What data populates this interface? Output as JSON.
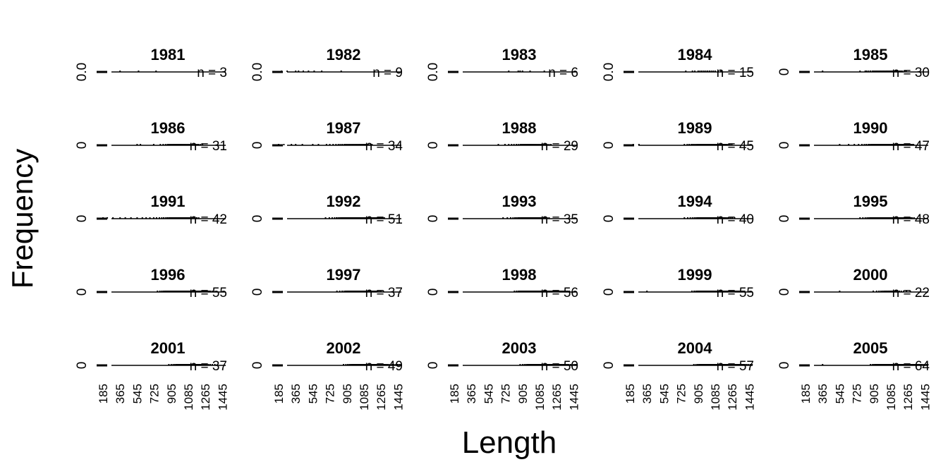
{
  "chart_data": {
    "type": "bar",
    "ylabel": "Frequency",
    "xlabel": "Length",
    "x_ticks": [
      "185",
      "365",
      "545",
      "725",
      "905",
      "1085",
      "1265",
      "1445"
    ],
    "xlim": [
      140,
      1480
    ],
    "panels": [
      {
        "title": "1981",
        "n_label": "n = 3",
        "y_label": "0.0",
        "lengths": [
          365,
          560,
          745
        ]
      },
      {
        "title": "1982",
        "n_label": "n = 9",
        "y_label": "0.0",
        "lengths": [
          215,
          275,
          365,
          395,
          445,
          500,
          560,
          640,
          845
        ]
      },
      {
        "title": "1983",
        "n_label": "n = 6",
        "y_label": "0.0",
        "lengths": [
          760,
          860,
          880,
          905,
          985,
          1135
        ]
      },
      {
        "title": "1984",
        "n_label": "n = 15",
        "y_label": "0.0",
        "lengths": [
          775,
          845,
          870,
          905,
          925,
          945,
          965,
          985,
          1005,
          1025,
          1045,
          1065,
          1085,
          1115,
          1145
        ]
      },
      {
        "title": "1985",
        "n_label": "n = 30",
        "y_label": "0",
        "lengths": [
          365,
          760,
          815,
          830,
          850,
          870,
          890,
          905,
          920,
          935,
          950,
          965,
          980,
          995,
          1010,
          1025,
          1040,
          1055,
          1070,
          1085,
          1100,
          1115,
          1130,
          1145,
          1160,
          1175,
          1190,
          1205,
          1225,
          1245
        ]
      },
      {
        "title": "1986",
        "n_label": "n = 31",
        "y_label": "0",
        "lengths": [
          545,
          580,
          720,
          790,
          820,
          845,
          865,
          880,
          895,
          910,
          925,
          940,
          955,
          970,
          985,
          1000,
          1015,
          1030,
          1045,
          1060,
          1075,
          1090,
          1105,
          1120,
          1135,
          1150,
          1165,
          1180,
          1195,
          1215,
          1235
        ]
      },
      {
        "title": "1987",
        "n_label": "n = 34",
        "y_label": "0",
        "lengths": [
          185,
          240,
          320,
          365,
          435,
          545,
          605,
          690,
          725,
          760,
          790,
          815,
          835,
          855,
          875,
          890,
          905,
          920,
          935,
          950,
          965,
          980,
          995,
          1010,
          1025,
          1040,
          1055,
          1070,
          1085,
          1100,
          1115,
          1130,
          1150,
          1170
        ]
      },
      {
        "title": "1988",
        "n_label": "n = 29",
        "y_label": "0",
        "lengths": [
          650,
          720,
          760,
          790,
          815,
          840,
          860,
          880,
          895,
          910,
          925,
          940,
          955,
          970,
          985,
          1000,
          1015,
          1030,
          1045,
          1060,
          1075,
          1090,
          1105,
          1120,
          1135,
          1150,
          1165,
          1185,
          1205
        ]
      },
      {
        "title": "1989",
        "n_label": "n = 45",
        "y_label": "0",
        "lengths": [
          220,
          280,
          760,
          790,
          810,
          830,
          845,
          860,
          875,
          890,
          900,
          910,
          920,
          930,
          940,
          950,
          960,
          970,
          980,
          990,
          1000,
          1010,
          1020,
          1030,
          1040,
          1050,
          1060,
          1070,
          1080,
          1090,
          1100,
          1110,
          1120,
          1130,
          1140,
          1150,
          1160,
          1170,
          1180,
          1190,
          1200,
          1210,
          1225,
          1240,
          1260
        ]
      },
      {
        "title": "1990",
        "n_label": "n = 47",
        "y_label": "0",
        "lengths": [
          545,
          640,
          700,
          745,
          780,
          805,
          825,
          845,
          860,
          875,
          888,
          900,
          912,
          924,
          936,
          948,
          960,
          972,
          984,
          996,
          1008,
          1020,
          1032,
          1044,
          1056,
          1068,
          1080,
          1092,
          1104,
          1116,
          1128,
          1140,
          1152,
          1164,
          1176,
          1188,
          1200,
          1212,
          1224,
          1236,
          1248,
          1260,
          1272,
          1284,
          1296,
          1310,
          1325
        ]
      },
      {
        "title": "1991",
        "n_label": "n = 42",
        "y_label": "0",
        "lengths": [
          185,
          230,
          290,
          365,
          420,
          480,
          545,
          600,
          640,
          680,
          720,
          750,
          780,
          805,
          825,
          845,
          862,
          878,
          892,
          905,
          918,
          930,
          942,
          954,
          966,
          978,
          990,
          1002,
          1014,
          1026,
          1038,
          1050,
          1062,
          1074,
          1086,
          1098,
          1110,
          1125,
          1140,
          1155,
          1175,
          1195
        ]
      },
      {
        "title": "1992",
        "n_label": "n = 51",
        "y_label": "0",
        "lengths": [
          680,
          720,
          750,
          775,
          795,
          812,
          828,
          842,
          855,
          867,
          878,
          888,
          898,
          908,
          918,
          928,
          938,
          948,
          958,
          968,
          978,
          988,
          998,
          1008,
          1018,
          1028,
          1038,
          1048,
          1058,
          1068,
          1078,
          1088,
          1098,
          1108,
          1118,
          1128,
          1138,
          1148,
          1158,
          1168,
          1178,
          1188,
          1198,
          1208,
          1218,
          1230,
          1242,
          1255,
          1270,
          1285,
          1300
        ]
      },
      {
        "title": "1993",
        "n_label": "n = 35",
        "y_label": "0",
        "lengths": [
          700,
          745,
          780,
          805,
          825,
          842,
          858,
          872,
          885,
          897,
          908,
          918,
          928,
          938,
          948,
          958,
          968,
          978,
          988,
          998,
          1008,
          1018,
          1028,
          1038,
          1048,
          1058,
          1068,
          1078,
          1090,
          1102,
          1115,
          1130,
          1145,
          1165,
          1185
        ]
      },
      {
        "title": "1994",
        "n_label": "n = 40",
        "y_label": "0",
        "lengths": [
          760,
          795,
          822,
          845,
          865,
          882,
          897,
          910,
          922,
          934,
          945,
          956,
          967,
          978,
          988,
          998,
          1008,
          1018,
          1028,
          1038,
          1048,
          1058,
          1068,
          1078,
          1088,
          1098,
          1108,
          1118,
          1128,
          1138,
          1148,
          1158,
          1170,
          1182,
          1195,
          1210,
          1225,
          1245,
          1265,
          1290
        ]
      },
      {
        "title": "1995",
        "n_label": "n = 48",
        "y_label": "0",
        "lengths": [
          760,
          790,
          815,
          835,
          852,
          867,
          880,
          892,
          903,
          913,
          923,
          933,
          943,
          953,
          963,
          973,
          983,
          993,
          1003,
          1013,
          1023,
          1033,
          1043,
          1053,
          1063,
          1073,
          1083,
          1093,
          1103,
          1113,
          1123,
          1133,
          1143,
          1153,
          1163,
          1173,
          1183,
          1193,
          1203,
          1213,
          1225,
          1237,
          1250,
          1265,
          1280,
          1295,
          1310,
          1330
        ]
      },
      {
        "title": "1996",
        "n_label": "n = 55",
        "y_label": "0",
        "lengths": [
          760,
          785,
          805,
          822,
          837,
          850,
          862,
          873,
          883,
          893,
          902,
          911,
          920,
          929,
          938,
          947,
          956,
          965,
          974,
          983,
          992,
          1001,
          1010,
          1019,
          1028,
          1037,
          1046,
          1055,
          1064,
          1073,
          1082,
          1091,
          1100,
          1109,
          1118,
          1127,
          1136,
          1145,
          1154,
          1163,
          1172,
          1181,
          1190,
          1199,
          1208,
          1218,
          1228,
          1238,
          1250,
          1262,
          1275,
          1290,
          1305,
          1320,
          1340
        ]
      },
      {
        "title": "1997",
        "n_label": "n = 37",
        "y_label": "0",
        "lengths": [
          800,
          830,
          855,
          875,
          892,
          907,
          920,
          932,
          943,
          954,
          965,
          976,
          987,
          998,
          1009,
          1020,
          1031,
          1042,
          1053,
          1064,
          1075,
          1086,
          1097,
          1108,
          1119,
          1130,
          1141,
          1152,
          1163,
          1174,
          1186,
          1198,
          1212,
          1227,
          1245,
          1265,
          1290
        ]
      },
      {
        "title": "1998",
        "n_label": "n = 56",
        "y_label": "0",
        "lengths": [
          820,
          842,
          860,
          875,
          888,
          900,
          911,
          921,
          931,
          940,
          949,
          958,
          967,
          976,
          985,
          994,
          1003,
          1012,
          1021,
          1030,
          1039,
          1048,
          1057,
          1066,
          1075,
          1084,
          1093,
          1102,
          1111,
          1120,
          1129,
          1138,
          1147,
          1156,
          1165,
          1174,
          1183,
          1192,
          1201,
          1210,
          1219,
          1228,
          1237,
          1246,
          1255,
          1265,
          1275,
          1285,
          1296,
          1308,
          1320,
          1333,
          1347,
          1362,
          1380,
          1400
        ]
      },
      {
        "title": "1999",
        "n_label": "n = 55",
        "y_label": "0",
        "lengths": [
          365,
          840,
          862,
          880,
          895,
          908,
          920,
          931,
          941,
          951,
          960,
          969,
          978,
          987,
          996,
          1005,
          1014,
          1023,
          1032,
          1041,
          1050,
          1059,
          1068,
          1077,
          1086,
          1095,
          1104,
          1113,
          1122,
          1131,
          1140,
          1149,
          1158,
          1167,
          1176,
          1185,
          1194,
          1203,
          1212,
          1221,
          1230,
          1239,
          1248,
          1257,
          1266,
          1275,
          1285,
          1295,
          1306,
          1318,
          1330,
          1343,
          1358,
          1375,
          1395
        ]
      },
      {
        "title": "2000",
        "n_label": "n = 22",
        "y_label": "0",
        "lengths": [
          545,
          900,
          935,
          960,
          980,
          998,
          1014,
          1029,
          1043,
          1057,
          1071,
          1085,
          1099,
          1113,
          1127,
          1141,
          1157,
          1175,
          1195,
          1220,
          1250,
          1290
        ]
      },
      {
        "title": "2001",
        "n_label": "n = 37",
        "y_label": "0",
        "lengths": [
          880,
          905,
          925,
          942,
          957,
          970,
          982,
          993,
          1004,
          1015,
          1026,
          1037,
          1048,
          1059,
          1070,
          1081,
          1092,
          1103,
          1114,
          1125,
          1136,
          1147,
          1158,
          1169,
          1180,
          1191,
          1202,
          1213,
          1225,
          1237,
          1250,
          1264,
          1280,
          1297,
          1316,
          1338,
          1365
        ]
      },
      {
        "title": "2002",
        "n_label": "n = 49",
        "y_label": "0",
        "lengths": [
          870,
          895,
          915,
          932,
          947,
          960,
          972,
          983,
          994,
          1004,
          1014,
          1024,
          1034,
          1044,
          1054,
          1064,
          1074,
          1084,
          1094,
          1104,
          1114,
          1124,
          1134,
          1144,
          1154,
          1164,
          1174,
          1184,
          1194,
          1204,
          1214,
          1224,
          1234,
          1244,
          1255,
          1266,
          1278,
          1290,
          1303,
          1317,
          1332,
          1348,
          1365,
          1383,
          1402,
          1422,
          1442,
          1460,
          1475
        ]
      },
      {
        "title": "2003",
        "n_label": "n = 50",
        "y_label": "0",
        "lengths": [
          880,
          905,
          925,
          942,
          957,
          970,
          982,
          993,
          1003,
          1013,
          1023,
          1033,
          1043,
          1053,
          1063,
          1073,
          1083,
          1093,
          1103,
          1113,
          1123,
          1133,
          1143,
          1153,
          1163,
          1173,
          1183,
          1193,
          1203,
          1213,
          1223,
          1233,
          1243,
          1253,
          1263,
          1273,
          1284,
          1295,
          1307,
          1319,
          1332,
          1346,
          1361,
          1377,
          1394,
          1412,
          1430,
          1448,
          1464,
          1478
        ]
      },
      {
        "title": "2004",
        "n_label": "n = 57",
        "y_label": "0",
        "lengths": [
          860,
          882,
          900,
          915,
          928,
          940,
          951,
          961,
          971,
          980,
          989,
          998,
          1007,
          1016,
          1025,
          1034,
          1043,
          1052,
          1061,
          1070,
          1079,
          1088,
          1097,
          1106,
          1115,
          1124,
          1133,
          1142,
          1151,
          1160,
          1169,
          1178,
          1187,
          1196,
          1205,
          1214,
          1223,
          1232,
          1241,
          1250,
          1259,
          1268,
          1278,
          1288,
          1298,
          1309,
          1320,
          1332,
          1344,
          1357,
          1371,
          1386,
          1402,
          1419,
          1437,
          1456,
          1474
        ]
      },
      {
        "title": "2005",
        "n_label": "n = 64",
        "y_label": "0",
        "lengths": [
          365,
          870,
          890,
          906,
          920,
          932,
          943,
          953,
          962,
          971,
          979,
          987,
          995,
          1003,
          1011,
          1019,
          1027,
          1035,
          1043,
          1051,
          1059,
          1067,
          1075,
          1083,
          1091,
          1099,
          1107,
          1115,
          1123,
          1131,
          1139,
          1147,
          1155,
          1163,
          1171,
          1179,
          1187,
          1195,
          1203,
          1211,
          1219,
          1227,
          1235,
          1243,
          1251,
          1259,
          1267,
          1275,
          1284,
          1293,
          1302,
          1312,
          1322,
          1333,
          1344,
          1356,
          1368,
          1381,
          1395,
          1410,
          1426,
          1443,
          1460,
          1476
        ]
      }
    ]
  }
}
